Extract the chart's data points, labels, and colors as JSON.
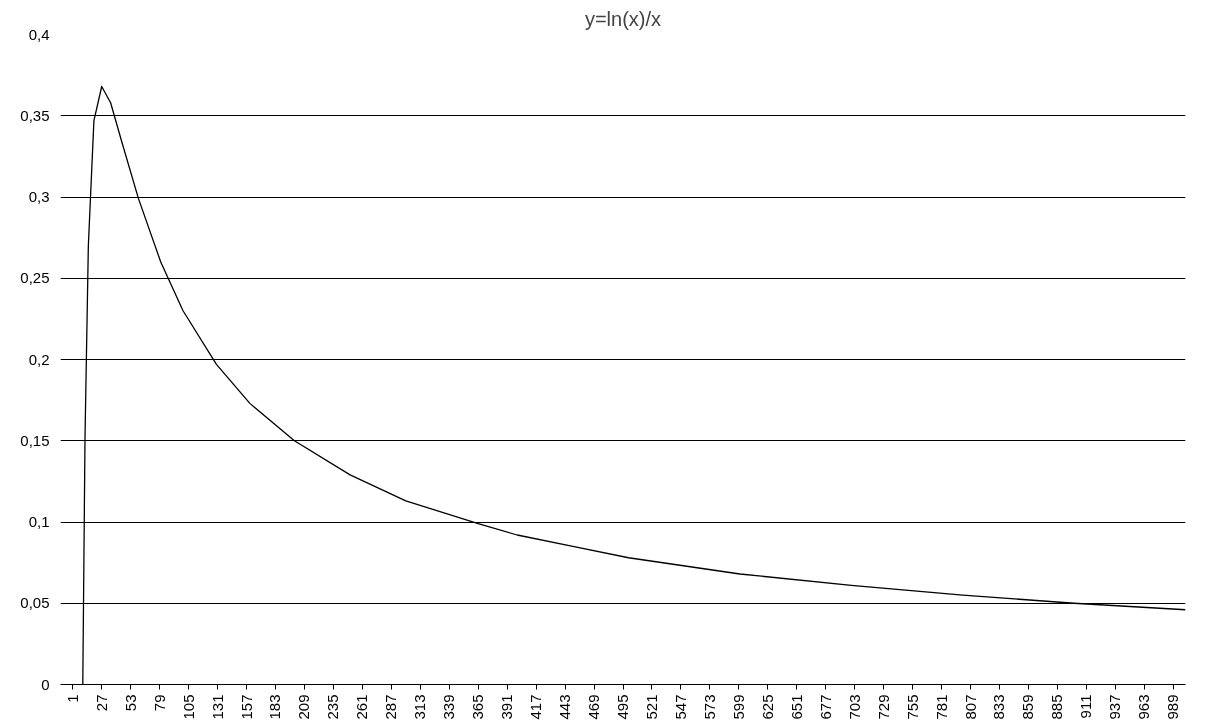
{
  "chart_data": {
    "type": "line",
    "title": "y=ln(x)/x",
    "x": [
      10,
      12,
      15,
      20,
      27,
      35,
      45,
      60,
      80,
      100,
      130,
      160,
      200,
      250,
      300,
      365,
      400,
      450,
      500,
      600,
      700,
      800,
      900,
      1000
    ],
    "values": [
      0,
      0.152,
      0.27,
      0.347,
      0.368,
      0.358,
      0.334,
      0.299,
      0.26,
      0.23,
      0.197,
      0.173,
      0.15,
      0.129,
      0.113,
      0.099,
      0.092,
      0.085,
      0.078,
      0.068,
      0.061,
      0.055,
      0.05,
      0.046
    ],
    "color": "#000000",
    "xlim": [
      -10,
      1000
    ],
    "xticks": [
      1,
      27,
      53,
      79,
      105,
      131,
      157,
      183,
      209,
      235,
      261,
      287,
      313,
      339,
      365,
      391,
      417,
      443,
      469,
      495,
      521,
      547,
      573,
      599,
      625,
      651,
      677,
      703,
      729,
      755,
      781,
      807,
      833,
      859,
      885,
      911,
      937,
      963,
      989
    ],
    "ylim": [
      0,
      0.4
    ],
    "yticks": [
      {
        "value": 0,
        "label": "0"
      },
      {
        "value": 0.05,
        "label": "0,05"
      },
      {
        "value": 0.1,
        "label": "0,1"
      },
      {
        "value": 0.15,
        "label": "0,15"
      },
      {
        "value": 0.2,
        "label": "0,2"
      },
      {
        "value": 0.25,
        "label": "0,25"
      },
      {
        "value": 0.3,
        "label": "0,3"
      },
      {
        "value": 0.35,
        "label": "0,35"
      },
      {
        "value": 0.4,
        "label": "0,4"
      }
    ],
    "grid": "y",
    "marker": "none",
    "line_style": "solid"
  }
}
